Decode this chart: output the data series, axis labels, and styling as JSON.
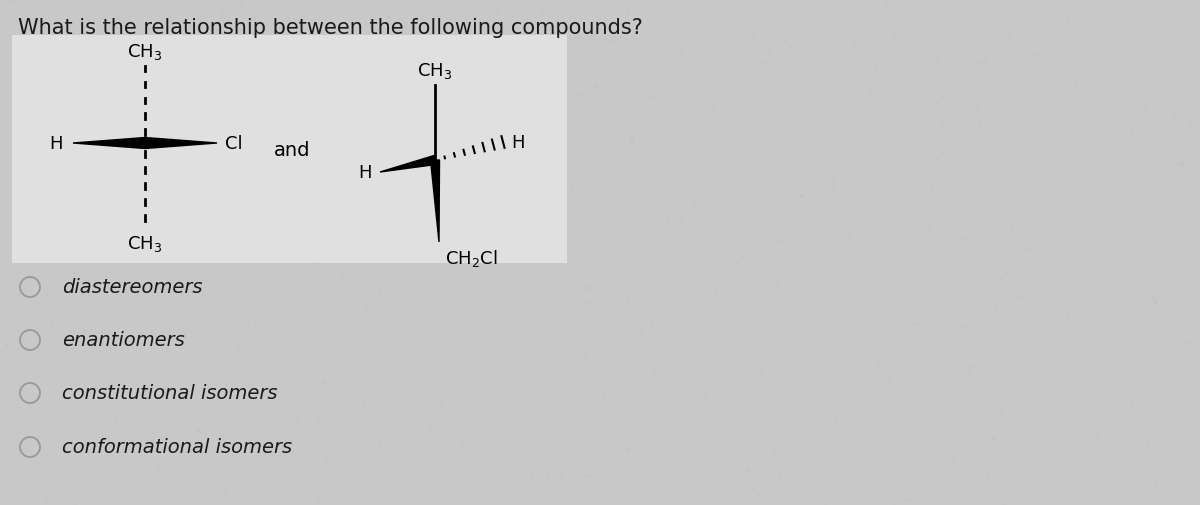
{
  "question": "What is the relationship between the following compounds?",
  "choices": [
    "diastereomers",
    "enantiomers",
    "constitutional isomers",
    "conformational isomers"
  ],
  "bg_color": "#c8c8c8",
  "box_color": "#e0e0e0",
  "text_color": "#1a1a1a",
  "question_fontsize": 15,
  "choice_fontsize": 14,
  "fig_width": 12.0,
  "fig_height": 5.06,
  "dpi": 100
}
